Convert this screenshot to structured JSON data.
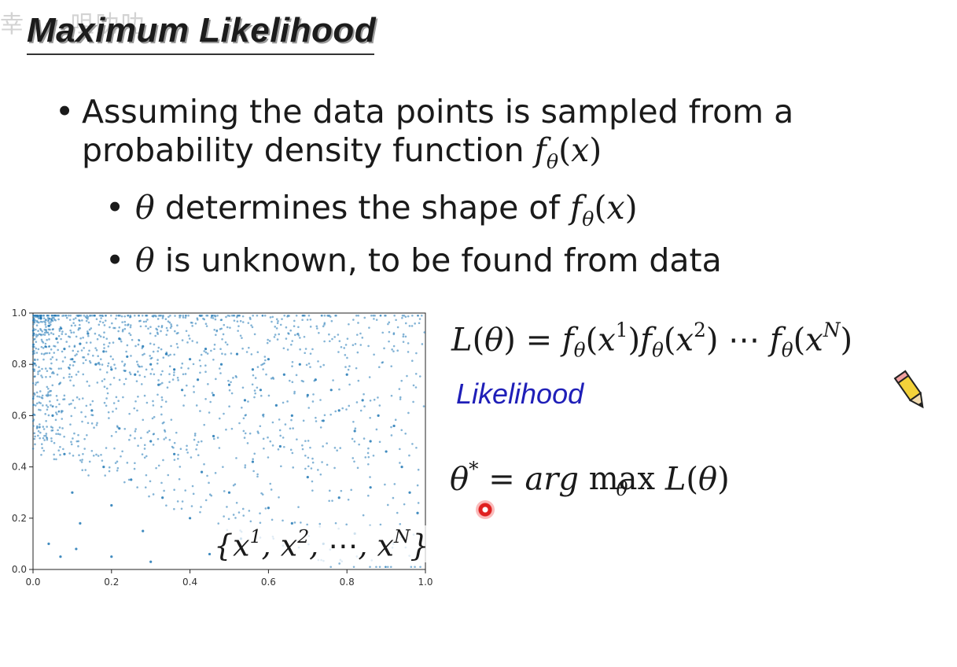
{
  "slide": {
    "title": "Maximum Likelihood",
    "bullets": {
      "b1_line1": "Assuming the data points is sampled from a",
      "b1_line2_text": "probability density function ",
      "b2a_text": " determines the shape of ",
      "b2b_text": " is unknown, to be found from data"
    },
    "set_label": "{x¹, x², ⋯, xᴺ}",
    "likelihood_label": "Likelihood",
    "icons": [
      "pencil-icon",
      "laser-pointer-icon"
    ],
    "colors": {
      "likelihood": "#1f1fb8",
      "points": "#1f77b4"
    }
  },
  "chart_data": {
    "type": "scatter",
    "title": "",
    "xlabel": "",
    "ylabel": "",
    "xlim": [
      0.0,
      1.0
    ],
    "ylim": [
      0.0,
      1.0
    ],
    "xticks": [
      "0.0",
      "0.2",
      "0.4",
      "0.6",
      "0.8",
      "1.0"
    ],
    "yticks": [
      "0.0",
      "0.2",
      "0.4",
      "0.6",
      "0.8",
      "1.0"
    ],
    "grid": false,
    "series": [
      {
        "color": "#1f77b4",
        "points": [
          [
            0.02,
            0.98
          ],
          [
            0.04,
            0.95
          ],
          [
            0.06,
            0.9
          ],
          [
            0.08,
            0.86
          ],
          [
            0.1,
            0.82
          ],
          [
            0.12,
            0.88
          ],
          [
            0.14,
            0.92
          ],
          [
            0.16,
            0.8
          ],
          [
            0.18,
            0.85
          ],
          [
            0.2,
            0.78
          ],
          [
            0.22,
            0.9
          ],
          [
            0.24,
            0.83
          ],
          [
            0.26,
            0.76
          ],
          [
            0.28,
            0.87
          ],
          [
            0.3,
            0.8
          ],
          [
            0.32,
            0.72
          ],
          [
            0.34,
            0.84
          ],
          [
            0.36,
            0.78
          ],
          [
            0.38,
            0.7
          ],
          [
            0.4,
            0.82
          ],
          [
            0.42,
            0.74
          ],
          [
            0.44,
            0.86
          ],
          [
            0.46,
            0.68
          ],
          [
            0.48,
            0.8
          ],
          [
            0.5,
            0.72
          ],
          [
            0.52,
            0.84
          ],
          [
            0.54,
            0.66
          ],
          [
            0.56,
            0.78
          ],
          [
            0.58,
            0.7
          ],
          [
            0.6,
            0.82
          ],
          [
            0.62,
            0.64
          ],
          [
            0.64,
            0.76
          ],
          [
            0.66,
            0.6
          ],
          [
            0.68,
            0.8
          ],
          [
            0.7,
            0.68
          ],
          [
            0.72,
            0.74
          ],
          [
            0.74,
            0.58
          ],
          [
            0.76,
            0.7
          ],
          [
            0.78,
            0.62
          ],
          [
            0.8,
            0.76
          ],
          [
            0.82,
            0.54
          ],
          [
            0.84,
            0.66
          ],
          [
            0.86,
            0.5
          ],
          [
            0.88,
            0.6
          ],
          [
            0.9,
            0.46
          ],
          [
            0.92,
            0.56
          ],
          [
            0.94,
            0.4
          ],
          [
            0.96,
            0.3
          ],
          [
            0.98,
            0.22
          ],
          [
            0.05,
            0.6
          ],
          [
            0.08,
            0.45
          ],
          [
            0.1,
            0.3
          ],
          [
            0.12,
            0.18
          ],
          [
            0.15,
            0.62
          ],
          [
            0.18,
            0.4
          ],
          [
            0.2,
            0.25
          ],
          [
            0.22,
            0.55
          ],
          [
            0.25,
            0.35
          ],
          [
            0.28,
            0.15
          ],
          [
            0.3,
            0.5
          ],
          [
            0.33,
            0.28
          ],
          [
            0.36,
            0.45
          ],
          [
            0.4,
            0.2
          ],
          [
            0.43,
            0.38
          ],
          [
            0.46,
            0.52
          ],
          [
            0.5,
            0.3
          ],
          [
            0.53,
            0.12
          ],
          [
            0.56,
            0.42
          ],
          [
            0.6,
            0.24
          ],
          [
            0.63,
            0.48
          ],
          [
            0.66,
            0.18
          ],
          [
            0.7,
            0.36
          ],
          [
            0.74,
            0.1
          ],
          [
            0.78,
            0.28
          ],
          [
            0.82,
            0.14
          ],
          [
            0.86,
            0.32
          ],
          [
            0.9,
            0.08
          ],
          [
            0.04,
            0.1
          ],
          [
            0.07,
            0.05
          ],
          [
            0.11,
            0.08
          ],
          [
            0.2,
            0.05
          ],
          [
            0.3,
            0.03
          ],
          [
            0.45,
            0.06
          ]
        ]
      }
    ]
  }
}
